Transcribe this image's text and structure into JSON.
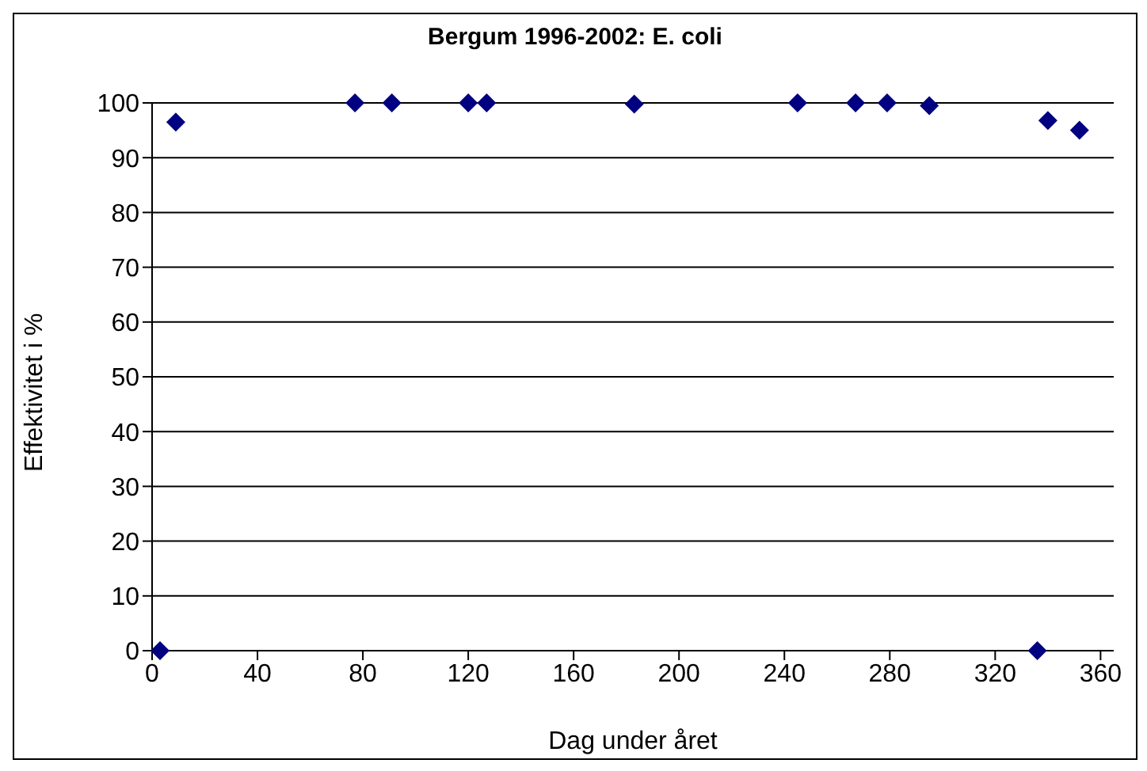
{
  "chart_data": {
    "type": "scatter",
    "title": "Bergum 1996-2002: E. coli",
    "xlabel": "Dag under året",
    "ylabel": "Effektivitet i %",
    "x": [
      3,
      9,
      77,
      91,
      120,
      127,
      183,
      245,
      267,
      279,
      295,
      336,
      340,
      352
    ],
    "series": [
      {
        "color": "#000080",
        "values": [
          0,
          96.5,
          100,
          100,
          100,
          100,
          99.8,
          100,
          100,
          100,
          99.5,
          0,
          96.8,
          95
        ]
      }
    ],
    "xlim": [
      0,
      365
    ],
    "xticks": [
      0,
      40,
      80,
      120,
      160,
      200,
      240,
      280,
      320,
      360
    ],
    "ylim": [
      0,
      100
    ],
    "yticks": [
      0,
      10,
      20,
      30,
      40,
      50,
      60,
      70,
      80,
      90,
      100
    ],
    "grid": "y",
    "marker": "diamond",
    "legend": false
  }
}
